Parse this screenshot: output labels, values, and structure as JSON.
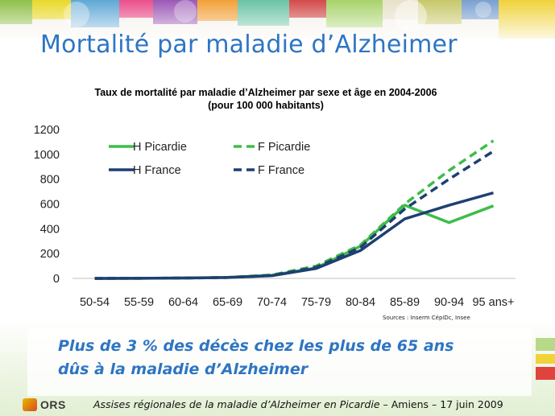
{
  "slide": {
    "title": "Mortalité par maladie d’Alzheimer",
    "source": "Sources : Inserm CépiDc, Insee",
    "conclusion_line1": "Plus de 3 % des décès chez les plus de 65 ans",
    "conclusion_line2": "dûs à la maladie d’Alzheimer",
    "footer": {
      "logo_text": "ORS",
      "event_italic": "Assises régionales de la maladie d’Alzheimer en Picardie",
      "event_rest": " – Amiens – 17 juin 2009"
    }
  },
  "chart_data": {
    "type": "line",
    "title_line1": "Taux de mortalité par maladie d’Alzheimer par sexe et âge en 2004-2006",
    "title_line2": "(pour 100 000 habitants)",
    "categories": [
      "50-54",
      "55-59",
      "60-64",
      "65-69",
      "70-74",
      "75-79",
      "80-84",
      "85-89",
      "90-94",
      "95 ans+"
    ],
    "ylim": [
      0,
      1200
    ],
    "yticks": [
      0,
      200,
      400,
      600,
      800,
      1000,
      1200
    ],
    "grid": false,
    "legend_position": "top-left",
    "series": [
      {
        "name": "H Picardie",
        "color": "#3dbd4a",
        "dash": false,
        "values": [
          0,
          1,
          3,
          8,
          25,
          85,
          260,
          590,
          450,
          585
        ]
      },
      {
        "name": "F Picardie",
        "color": "#3dbd4a",
        "dash": true,
        "values": [
          0,
          1,
          3,
          8,
          28,
          100,
          270,
          600,
          870,
          1110
        ]
      },
      {
        "name": "H France",
        "color": "#1f3f73",
        "dash": false,
        "values": [
          0,
          1,
          3,
          7,
          22,
          80,
          225,
          480,
          590,
          690
        ]
      },
      {
        "name": "F France",
        "color": "#1f3f73",
        "dash": true,
        "values": [
          0,
          1,
          3,
          7,
          24,
          90,
          250,
          560,
          800,
          1025
        ]
      }
    ]
  }
}
